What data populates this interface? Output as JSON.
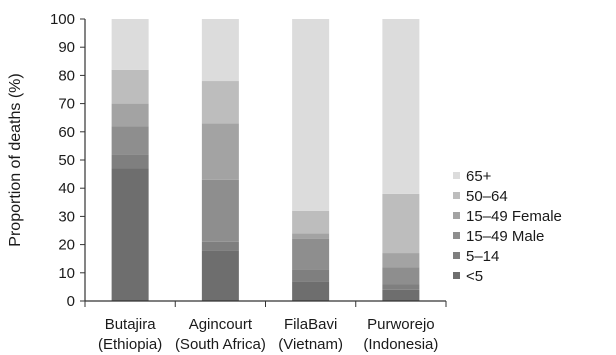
{
  "chart_data": {
    "type": "bar",
    "stacked": true,
    "ylabel": "Proportion of deaths (%)",
    "ylim": [
      0,
      100
    ],
    "yticks": [
      0,
      10,
      20,
      30,
      40,
      50,
      60,
      70,
      80,
      90,
      100
    ],
    "categories": [
      {
        "line1": "Butajira",
        "line2": "(Ethiopia)"
      },
      {
        "line1": "Agincourt",
        "line2": "(South Africa)"
      },
      {
        "line1": "FilaBavi",
        "line2": "(Vietnam)"
      },
      {
        "line1": "Purworejo",
        "line2": "(Indonesia)"
      }
    ],
    "series": [
      {
        "name": "<5",
        "color": "#6e6e6e",
        "values": [
          47,
          18,
          7,
          4
        ]
      },
      {
        "name": "5–14",
        "color": "#7f7f7f",
        "values": [
          5,
          3,
          4,
          2
        ]
      },
      {
        "name": "15–49 Male",
        "color": "#8e8e8e",
        "values": [
          10,
          22,
          11,
          6
        ]
      },
      {
        "name": "15–49 Female",
        "color": "#a3a3a3",
        "values": [
          8,
          20,
          2,
          5
        ]
      },
      {
        "name": "50–64",
        "color": "#bdbdbd",
        "values": [
          12,
          15,
          8,
          21
        ]
      },
      {
        "name": "65+",
        "color": "#dcdcdc",
        "values": [
          18,
          22,
          68,
          62
        ]
      }
    ],
    "legend": {
      "position": "right",
      "order": [
        "65+",
        "50–64",
        "15–49 Female",
        "15–49 Male",
        "5–14",
        "<5"
      ]
    },
    "grid": false
  }
}
